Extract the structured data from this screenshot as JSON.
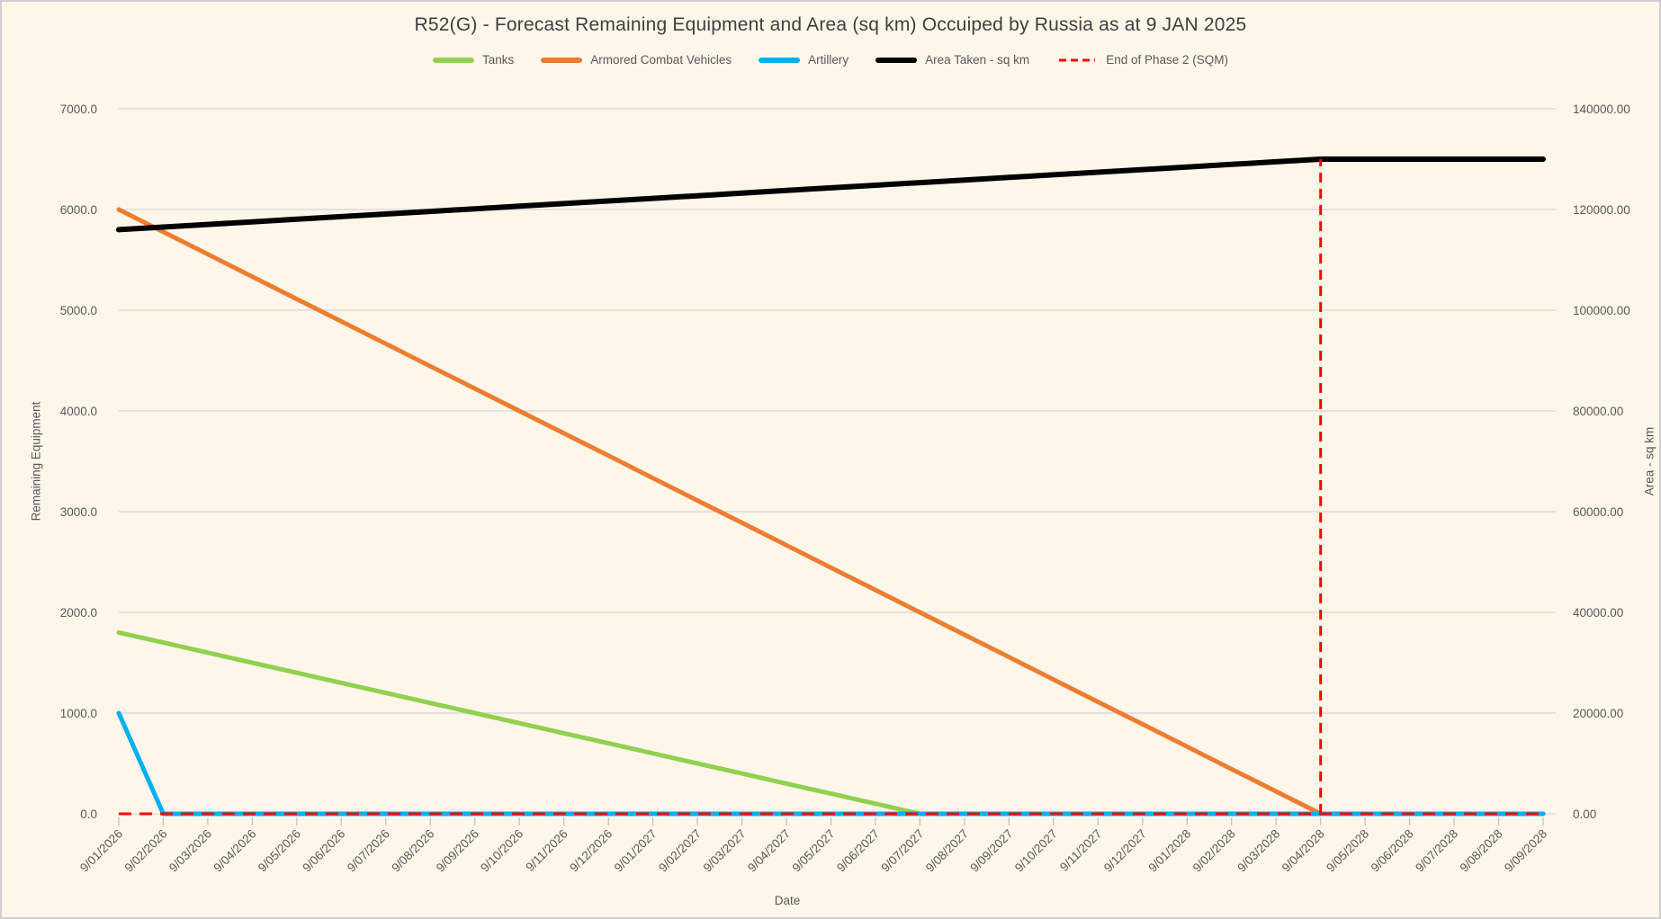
{
  "window": {
    "background_color": "#FDF6E9",
    "border_color": "#CFCDCF"
  },
  "colors": {
    "title_text": "#404040",
    "axis_text": "#595959",
    "gridline": "#DBDBDB",
    "x_tick": "#BFBFBF",
    "tanks": "#92D050",
    "armored_combat_vehicles": "#ED7D31",
    "artillery": "#00B0F0",
    "area_taken": "#000000",
    "end_of_phase_2": "#FF0000"
  },
  "chart_data": {
    "type": "line",
    "title": "R52(G) - Forecast Remaining Equipment and Area (sq km) Occuiped by Russia as at 9 JAN 2025",
    "xlabel": "Date",
    "ylabel_left": "Remaining Equipment",
    "ylabel_right": "Area - sq km",
    "ylim_left": [
      0,
      7000
    ],
    "ylim_right": [
      0,
      140000
    ],
    "yticks_left": [
      "0.0",
      "1000.0",
      "2000.0",
      "3000.0",
      "4000.0",
      "5000.0",
      "6000.0",
      "7000.0"
    ],
    "yticks_right": [
      "0.00",
      "20000.00",
      "40000.00",
      "60000.00",
      "80000.00",
      "100000.00",
      "120000.00",
      "140000.00"
    ],
    "grid": "horizontal",
    "legend_position": "top",
    "categories": [
      "9/01/2026",
      "9/02/2026",
      "9/03/2026",
      "9/04/2026",
      "9/05/2026",
      "9/06/2026",
      "9/07/2026",
      "9/08/2026",
      "9/09/2026",
      "9/10/2026",
      "9/11/2026",
      "9/12/2026",
      "9/01/2027",
      "9/02/2027",
      "9/03/2027",
      "9/04/2027",
      "9/05/2027",
      "9/06/2027",
      "9/07/2027",
      "9/08/2027",
      "9/09/2027",
      "9/10/2027",
      "9/11/2027",
      "9/12/2027",
      "9/01/2028",
      "9/02/2028",
      "9/03/2028",
      "9/04/2028",
      "9/05/2028",
      "9/06/2028",
      "9/07/2028",
      "9/08/2028",
      "9/09/2028"
    ],
    "series": [
      {
        "name": "Tanks",
        "color": "#92D050",
        "axis": "left",
        "style": "solid",
        "width": 5,
        "values": [
          1800,
          1700,
          1600,
          1500,
          1400,
          1300,
          1200,
          1100,
          1000,
          900,
          800,
          700,
          600,
          500,
          400,
          300,
          200,
          100,
          0,
          0,
          0,
          0,
          0,
          0,
          0,
          0,
          0,
          0,
          0,
          0,
          0,
          0,
          0
        ]
      },
      {
        "name": "Armored Combat Vehicles",
        "color": "#ED7D31",
        "axis": "left",
        "style": "solid",
        "width": 5,
        "values": [
          6000,
          5778,
          5556,
          5333,
          5111,
          4889,
          4667,
          4444,
          4222,
          4000,
          3778,
          3556,
          3333,
          3111,
          2889,
          2667,
          2444,
          2222,
          2000,
          1778,
          1556,
          1333,
          1111,
          889,
          667,
          444,
          222,
          0,
          0,
          0,
          0,
          0,
          0
        ]
      },
      {
        "name": "Artillery",
        "color": "#00B0F0",
        "axis": "left",
        "style": "solid",
        "width": 5,
        "values": [
          1000,
          0,
          0,
          0,
          0,
          0,
          0,
          0,
          0,
          0,
          0,
          0,
          0,
          0,
          0,
          0,
          0,
          0,
          0,
          0,
          0,
          0,
          0,
          0,
          0,
          0,
          0,
          0,
          0,
          0,
          0,
          0,
          0
        ]
      },
      {
        "name": "Area Taken - sq km",
        "color": "#000000",
        "axis": "right",
        "style": "solid",
        "width": 6,
        "values": [
          116000,
          116519,
          117037,
          117556,
          118074,
          118593,
          119111,
          119630,
          120148,
          120667,
          121185,
          121704,
          122222,
          122741,
          123259,
          123778,
          124296,
          124815,
          125333,
          125852,
          126370,
          126889,
          127407,
          127926,
          128444,
          128963,
          129481,
          130000,
          130000,
          130000,
          130000,
          130000,
          130000
        ]
      },
      {
        "name": "End of Phase 2 (SQM)",
        "color": "#FF0000",
        "axis": "right",
        "style": "dashed",
        "width": 3,
        "render": "baseline-plus-vertical-spike",
        "spike_category": "9/04/2028",
        "spike_value": 130000,
        "values": [
          0,
          0,
          0,
          0,
          0,
          0,
          0,
          0,
          0,
          0,
          0,
          0,
          0,
          0,
          0,
          0,
          0,
          0,
          0,
          0,
          0,
          0,
          0,
          0,
          0,
          0,
          0,
          130000,
          0,
          0,
          0,
          0,
          0
        ]
      }
    ]
  }
}
